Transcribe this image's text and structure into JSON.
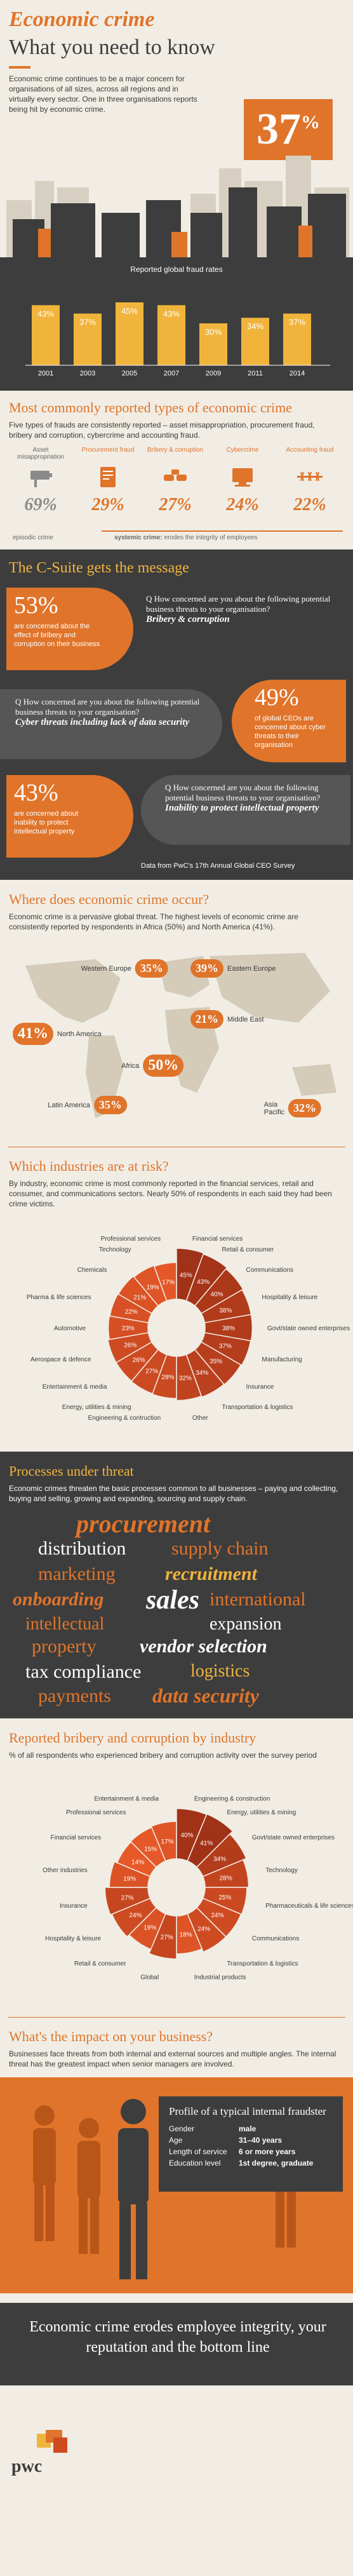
{
  "header": {
    "title": "Economic crime",
    "subtitle": "What you need to know",
    "intro": "Economic crime continues to be a major concern for organisations of all sizes, across all regions and in virtually every sector. One in three organisations reports being hit by economic crime.",
    "big_stat": "37",
    "big_stat_unit": "%"
  },
  "fraud_rates": {
    "chart_title": "Reported global fraud rates",
    "chart_data": {
      "type": "bar",
      "categories": [
        "2001",
        "2003",
        "2005",
        "2007",
        "2009",
        "2011",
        "2014"
      ],
      "values": [
        43,
        37,
        45,
        43,
        30,
        34,
        37
      ],
      "labels": [
        "43%",
        "37%",
        "45%",
        "43%",
        "30%",
        "34%",
        "37%"
      ],
      "title": "Reported global fraud rates",
      "ylim": [
        0,
        50
      ]
    }
  },
  "types": {
    "title": "Most commonly reported types of economic crime",
    "intro": "Five types of frauds are consistently reported – asset misappropriation, procurement fraud, bribery and corruption, cybercrime and accounting fraud.",
    "items": [
      {
        "label": "Asset misappropriation",
        "value": "69%",
        "icon": "cctv-camera-icon",
        "colored": false
      },
      {
        "label": "Procurement fraud",
        "value": "29%",
        "icon": "contract-icon",
        "colored": true
      },
      {
        "label": "Bribery & corruption",
        "value": "27%",
        "icon": "bribe-handshake-icon",
        "colored": true
      },
      {
        "label": "Cybercrime",
        "value": "24%",
        "icon": "computer-icon",
        "colored": true
      },
      {
        "label": "Accounting fraud",
        "value": "22%",
        "icon": "barbed-wire-icon",
        "colored": true
      }
    ],
    "legend_left": "episodic crime",
    "legend_right_bold": "systemic crime:",
    "legend_right": " erodes the integrity of employees"
  },
  "csuite": {
    "title": "The C-Suite gets the message",
    "blocks": [
      {
        "pct": "53%",
        "pct_text": "are concerned about the effect of bribery and corruption on their business",
        "q": "Q How concerned are you about the following potential business threats to your organisation?",
        "a": "Bribery & corruption"
      },
      {
        "pct": "49%",
        "pct_text": "of global CEOs are concerned about cyber threats to their organisation",
        "q": "Q How concerned are you about the following potential business threats to your organisation?",
        "a": "Cyber threats including lack of data security"
      },
      {
        "pct": "43%",
        "pct_text": "are concerned about inability to protect intellectual property",
        "q": "Q How concerned are you about the following potential business threats to your organisation?",
        "a": "Inability to protect intellectual property"
      }
    ],
    "source": "Data from PwC's 17th Annual Global CEO Survey"
  },
  "where": {
    "title": "Where does economic crime occur?",
    "intro": "Economic crime is a pervasive global threat. The highest levels of economic crime are consistently reported by respondents in Africa (50%) and North America (41%).",
    "regions": [
      {
        "name": "North America",
        "pct": "41%"
      },
      {
        "name": "Western Europe",
        "pct": "35%"
      },
      {
        "name": "Eastern Europe",
        "pct": "39%"
      },
      {
        "name": "Middle East",
        "pct": "21%"
      },
      {
        "name": "Africa",
        "pct": "50%"
      },
      {
        "name": "Latin America",
        "pct": "35%"
      },
      {
        "name": "Asia Pacific",
        "pct": "32%"
      }
    ]
  },
  "industries": {
    "title": "Which industries are at risk?",
    "intro": "By industry, economic crime is most commonly reported in the financial services, retail and consumer, and communications sectors. Nearly 50% of respondents in each said they had been crime victims.",
    "chart_data": {
      "type": "pie",
      "title": "",
      "labels": [
        "Financial services",
        "Retail & consumer",
        "Communications",
        "Hospitality & leisure",
        "Govt/state owned enterprises",
        "Manufacturing",
        "Insurance",
        "Transportation & logistics",
        "Other",
        "Engineering & contruction",
        "Energy, utilities & mining",
        "Entertainment & media",
        "Aerospace & defence",
        "Automotive",
        "Pharma & life sciences",
        "Chemicals",
        "Technology",
        "Professional services"
      ],
      "values": [
        45,
        43,
        40,
        38,
        38,
        37,
        35,
        34,
        32,
        28,
        27,
        26,
        26,
        23,
        22,
        21,
        19,
        17
      ],
      "value_labels": [
        "45%",
        "43%",
        "40%",
        "38%",
        "38%",
        "37%",
        "35%",
        "34%",
        "32%",
        "28%",
        "27%",
        "26%",
        "26%",
        "23%",
        "22%",
        "21%",
        "19%",
        "17%"
      ]
    }
  },
  "processes": {
    "title": "Processes under threat",
    "intro": "Economic crimes threaten the basic processes common to all businesses – paying and collecting, buying and selling, growing and expanding, sourcing and supply chain.",
    "words": [
      "procurement",
      "distribution",
      "supply chain",
      "marketing",
      "recruitment",
      "onboarding",
      "sales",
      "international",
      "intellectual",
      "expansion",
      "property",
      "vendor selection",
      "tax compliance",
      "logistics",
      "payments",
      "data security"
    ]
  },
  "bribery": {
    "title": "Reported bribery and corruption by industry",
    "intro": "% of all respondents who experienced bribery and corruption activity over the survey period",
    "chart_data": {
      "type": "pie",
      "title": "",
      "labels": [
        "Engineering & construction",
        "Energy, utilities & mining",
        "Govt/state owned enterprises",
        "Technology",
        "Pharmaceuticals & life sciences",
        "Communications",
        "Transportation & logistics",
        "Industrial products",
        "Global",
        "Retail & consumer",
        "Hospitality & leisure",
        "Insurance",
        "Other industries",
        "Financial services",
        "Professional services",
        "Entertainment & media"
      ],
      "values": [
        40,
        41,
        34,
        28,
        25,
        24,
        24,
        18,
        27,
        19,
        24,
        27,
        19,
        14,
        15,
        17
      ],
      "value_labels": [
        "40%",
        "41%",
        "34%",
        "28%",
        "25%",
        "24%",
        "24%",
        "18%",
        "27%",
        "19%",
        "24%",
        "27%",
        "19%",
        "14%",
        "15%",
        "17%"
      ]
    }
  },
  "impact": {
    "title": "What's the impact on your business?",
    "intro": "Businesses face threats from both internal and external sources and multiple angles. The internal threat has the greatest impact when senior managers are involved.",
    "profile_title": "Profile of a typical internal fraudster",
    "rows": [
      {
        "k": "Gender",
        "v": "male"
      },
      {
        "k": "Age",
        "v": "31–40 years"
      },
      {
        "k": "Length of service",
        "v": "6 or more years"
      },
      {
        "k": "Education level",
        "v": "1st degree, graduate"
      }
    ]
  },
  "footer": {
    "tagline": "Economic crime erodes employee integrity, your reputation and the bottom line",
    "brand": "pwc"
  },
  "colors": {
    "orange": "#e0742a",
    "dark": "#3d3d3d",
    "beige": "#f1ede4",
    "gold": "#f0b43c"
  }
}
